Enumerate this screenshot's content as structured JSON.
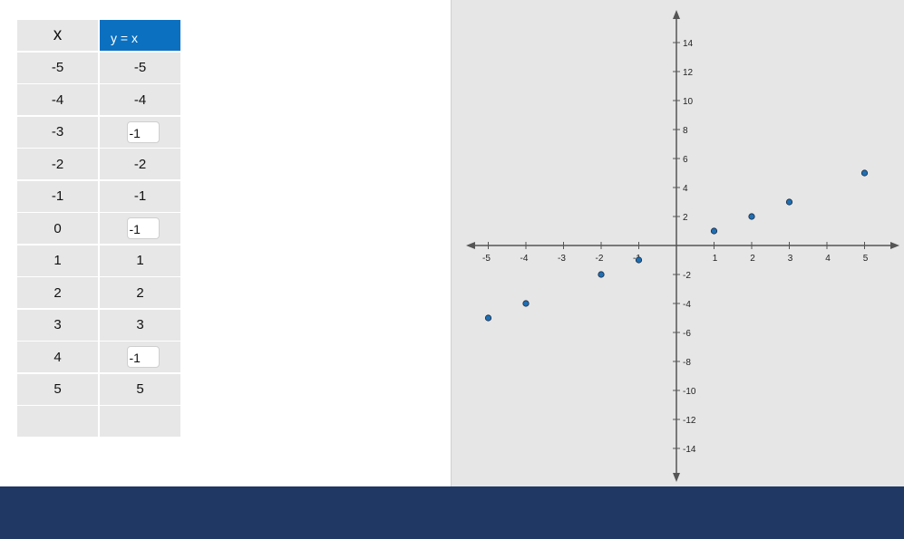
{
  "table": {
    "x_header": "x",
    "y_header": "y = x",
    "rows": [
      {
        "x": "-5",
        "y": "-5",
        "editable": false
      },
      {
        "x": "-4",
        "y": "-4",
        "editable": false
      },
      {
        "x": "-3",
        "y": "-1",
        "editable": true
      },
      {
        "x": "-2",
        "y": "-2",
        "editable": false
      },
      {
        "x": "-1",
        "y": "-1",
        "editable": false
      },
      {
        "x": "0",
        "y": "-1",
        "editable": true
      },
      {
        "x": "1",
        "y": "1",
        "editable": false
      },
      {
        "x": "2",
        "y": "2",
        "editable": false
      },
      {
        "x": "3",
        "y": "3",
        "editable": false
      },
      {
        "x": "4",
        "y": "-1",
        "editable": true
      },
      {
        "x": "5",
        "y": "5",
        "editable": false
      },
      {
        "x": "",
        "y": "",
        "editable": false
      }
    ]
  },
  "graph": {
    "x_ticks": [
      "-5",
      "-4",
      "-3",
      "-2",
      "-1",
      "1",
      "2",
      "3",
      "4",
      "5"
    ],
    "y_ticks": [
      "14",
      "12",
      "10",
      "8",
      "6",
      "4",
      "2",
      "-2",
      "-4",
      "-6",
      "-8",
      "-10",
      "-12",
      "-14"
    ],
    "points": [
      {
        "x": -5,
        "y": -5
      },
      {
        "x": -4,
        "y": -4
      },
      {
        "x": -2,
        "y": -2
      },
      {
        "x": -1,
        "y": -1
      },
      {
        "x": 1,
        "y": 1
      },
      {
        "x": 2,
        "y": 2
      },
      {
        "x": 3,
        "y": 3
      },
      {
        "x": 5,
        "y": 5
      }
    ],
    "point_color": "#1f6fb2"
  },
  "colors": {
    "header_blue": "#0b70c0",
    "cell_gray": "#e7e7e7",
    "graph_bg": "#e6e6e6",
    "footer_navy": "#203864"
  }
}
